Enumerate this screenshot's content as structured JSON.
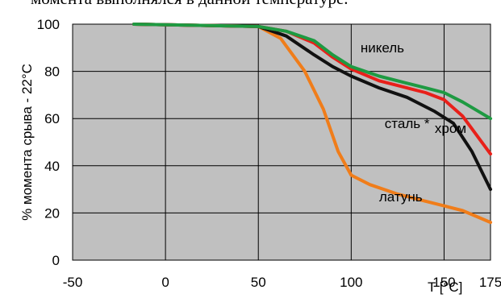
{
  "caption": "момента выполнялся в данной температуре.",
  "chart_data": {
    "type": "line",
    "ylabel": "% момента срыва - 22°C",
    "xlabel": "T [°C]",
    "xlim": [
      -50,
      175
    ],
    "ylim": [
      0,
      100
    ],
    "x_ticks": [
      -50,
      0,
      50,
      100,
      150,
      175
    ],
    "y_ticks": [
      0,
      20,
      40,
      60,
      80,
      100
    ],
    "grid": true,
    "series": [
      {
        "name": "латунь",
        "color": "#f07d1a",
        "points": [
          [
            -17,
            100
          ],
          [
            50,
            99
          ],
          [
            62,
            94
          ],
          [
            75,
            80
          ],
          [
            85,
            64
          ],
          [
            93,
            46
          ],
          [
            100,
            36
          ],
          [
            110,
            32
          ],
          [
            125,
            28
          ],
          [
            140,
            25
          ],
          [
            150,
            23
          ],
          [
            160,
            21
          ],
          [
            175,
            16
          ]
        ]
      },
      {
        "name": "сталь *",
        "color": "#111111",
        "points": [
          [
            -17,
            100
          ],
          [
            50,
            99
          ],
          [
            65,
            95
          ],
          [
            80,
            87
          ],
          [
            90,
            82
          ],
          [
            100,
            78
          ],
          [
            115,
            73
          ],
          [
            130,
            69
          ],
          [
            145,
            63
          ],
          [
            155,
            58
          ],
          [
            165,
            46
          ],
          [
            175,
            30
          ]
        ]
      },
      {
        "name": "хром",
        "color": "#e8201a",
        "points": [
          [
            -17,
            100
          ],
          [
            50,
            99
          ],
          [
            65,
            97
          ],
          [
            80,
            92
          ],
          [
            90,
            86
          ],
          [
            100,
            81
          ],
          [
            115,
            76
          ],
          [
            130,
            73
          ],
          [
            140,
            71
          ],
          [
            150,
            68
          ],
          [
            160,
            61
          ],
          [
            175,
            45
          ]
        ]
      },
      {
        "name": "никель",
        "color": "#1e9a42",
        "points": [
          [
            -17,
            100
          ],
          [
            50,
            99
          ],
          [
            65,
            97
          ],
          [
            80,
            93
          ],
          [
            90,
            87
          ],
          [
            100,
            82
          ],
          [
            115,
            78
          ],
          [
            130,
            75
          ],
          [
            140,
            73
          ],
          [
            150,
            71
          ],
          [
            160,
            67
          ],
          [
            175,
            60
          ]
        ]
      }
    ]
  }
}
